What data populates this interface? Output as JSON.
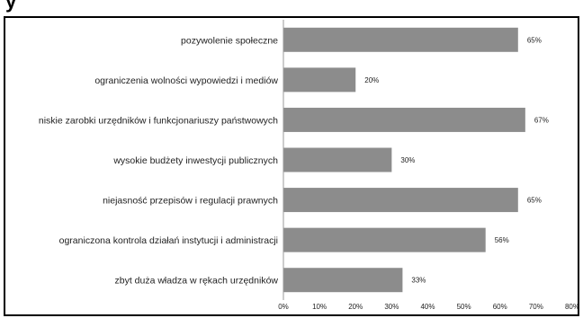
{
  "title": "y",
  "chart_data": {
    "type": "bar",
    "orientation": "horizontal",
    "categories": [
      "pozywolenie społeczne",
      "ograniczenia wolności wypowiedzi i mediów",
      "niskie zarobki urzędników i funkcjonariuszy państwowych",
      "wysokie budżety inwestycji publicznych",
      "niejasność przepisów i regulacji prawnych",
      "ograniczona kontrola działań instytucji i administracji",
      "zbyt duża władza w rękach urzędników"
    ],
    "values": [
      65,
      20,
      67,
      30,
      65,
      56,
      33
    ],
    "value_labels": [
      "65%",
      "20%",
      "67%",
      "30%",
      "65%",
      "56%",
      "33%"
    ],
    "xlim": [
      0,
      80
    ],
    "x_ticks": [
      "0%",
      "10%",
      "20%",
      "30%",
      "40%",
      "50%",
      "60%",
      "70%",
      "80%"
    ],
    "bar_color": "#8c8c8c",
    "grid": false,
    "legend": "none"
  }
}
